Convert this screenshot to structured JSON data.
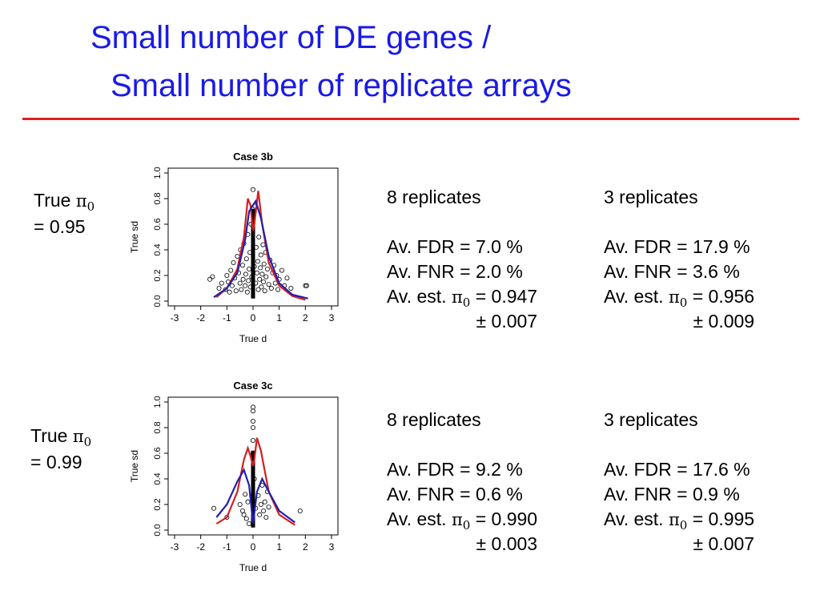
{
  "slide": {
    "title_line1": "Small number of DE genes /",
    "title_line2": "Small number of replicate arrays",
    "title_color": "#1a1ae6",
    "rule_color": "#e02020"
  },
  "panels": [
    {
      "true_prefix": "True ",
      "pi_symbol": "π",
      "pi_sub": "0",
      "true_value": "= 0.95",
      "columns": [
        {
          "heading": "8 replicates",
          "fdr": "Av. FDR = 7.0 %",
          "fnr": "Av. FNR = 2.0 %",
          "est_prefix": "Av. est. ",
          "est_value": " = 0.947",
          "pm": "± 0.007"
        },
        {
          "heading": "3 replicates",
          "fdr": "Av. FDR = 17.9 %",
          "fnr": "Av. FNR = 3.6 %",
          "est_prefix": "Av. est. ",
          "est_value": " = 0.956",
          "pm": "± 0.009"
        }
      ]
    },
    {
      "true_prefix": "True ",
      "pi_symbol": "π",
      "pi_sub": "0",
      "true_value": "= 0.99",
      "columns": [
        {
          "heading": "8 replicates",
          "fdr": "Av. FDR = 9.2 %",
          "fnr": "Av. FNR = 0.6 %",
          "est_prefix": "Av. est. ",
          "est_value": " = 0.990",
          "pm": "± 0.003"
        },
        {
          "heading": "3 replicates",
          "fdr": "Av. FDR = 17.6 %",
          "fnr": "Av. FNR = 0.9 %",
          "est_prefix": "Av. est. ",
          "est_value": " = 0.995",
          "pm": "± 0.007"
        }
      ]
    }
  ],
  "chart_data": [
    {
      "type": "scatter",
      "title": "Case 3b",
      "xlabel": "True d",
      "ylabel": "True sd",
      "xlim": [
        -3,
        3
      ],
      "ylim": [
        0,
        1
      ],
      "x_ticks": [
        "-3",
        "-2",
        "-1",
        "0",
        "1",
        "2",
        "3"
      ],
      "y_ticks": [
        "0.0",
        "0.2",
        "0.4",
        "0.6",
        "0.8",
        "1.0"
      ],
      "grid": false,
      "curve_colors": {
        "red": "#d42020",
        "blue": "#2020b0"
      },
      "points": [
        [
          -1.65,
          0.17
        ],
        [
          -1.55,
          0.19
        ],
        [
          -1.3,
          0.1
        ],
        [
          -1.2,
          0.14
        ],
        [
          -1.05,
          0.09
        ],
        [
          -1.0,
          0.2
        ],
        [
          -0.95,
          0.15
        ],
        [
          -0.9,
          0.07
        ],
        [
          -0.85,
          0.24
        ],
        [
          -0.8,
          0.12
        ],
        [
          -0.75,
          0.3
        ],
        [
          -0.7,
          0.18
        ],
        [
          -0.65,
          0.08
        ],
        [
          -0.6,
          0.35
        ],
        [
          -0.55,
          0.22
        ],
        [
          -0.5,
          0.14
        ],
        [
          -0.48,
          0.4
        ],
        [
          -0.45,
          0.09
        ],
        [
          -0.4,
          0.28
        ],
        [
          -0.38,
          0.17
        ],
        [
          -0.35,
          0.45
        ],
        [
          -0.3,
          0.12
        ],
        [
          -0.28,
          0.21
        ],
        [
          -0.25,
          0.33
        ],
        [
          -0.22,
          0.07
        ],
        [
          -0.2,
          0.52
        ],
        [
          -0.18,
          0.16
        ],
        [
          -0.15,
          0.25
        ],
        [
          -0.12,
          0.38
        ],
        [
          -0.1,
          0.11
        ],
        [
          -0.08,
          0.6
        ],
        [
          -0.05,
          0.19
        ],
        [
          0.0,
          0.87
        ],
        [
          0.05,
          0.27
        ],
        [
          0.08,
          0.74
        ],
        [
          0.1,
          0.14
        ],
        [
          0.12,
          0.42
        ],
        [
          0.15,
          0.22
        ],
        [
          0.18,
          0.31
        ],
        [
          0.2,
          0.09
        ],
        [
          0.22,
          0.5
        ],
        [
          0.25,
          0.17
        ],
        [
          0.28,
          0.26
        ],
        [
          0.3,
          0.36
        ],
        [
          0.32,
          0.11
        ],
        [
          0.35,
          0.21
        ],
        [
          0.38,
          0.44
        ],
        [
          0.4,
          0.15
        ],
        [
          0.42,
          0.29
        ],
        [
          0.45,
          0.08
        ],
        [
          0.48,
          0.38
        ],
        [
          0.5,
          0.19
        ],
        [
          0.55,
          0.25
        ],
        [
          0.6,
          0.13
        ],
        [
          0.65,
          0.32
        ],
        [
          0.7,
          0.1
        ],
        [
          0.75,
          0.22
        ],
        [
          0.8,
          0.28
        ],
        [
          0.85,
          0.14
        ],
        [
          0.9,
          0.2
        ],
        [
          0.95,
          0.09
        ],
        [
          1.0,
          0.17
        ],
        [
          1.1,
          0.24
        ],
        [
          1.2,
          0.12
        ],
        [
          1.3,
          0.18
        ],
        [
          1.45,
          0.1
        ],
        [
          2.0,
          0.12
        ],
        [
          2.05,
          0.12
        ]
      ],
      "spike_x": 0,
      "spike_range": [
        0.02,
        0.72
      ],
      "red_curve": [
        [
          -1.4,
          0.03
        ],
        [
          -1.0,
          0.1
        ],
        [
          -0.6,
          0.25
        ],
        [
          -0.35,
          0.5
        ],
        [
          -0.2,
          0.8
        ],
        [
          -0.1,
          0.75
        ],
        [
          0.0,
          0.55
        ],
        [
          0.05,
          0.6
        ],
        [
          0.2,
          0.86
        ],
        [
          0.35,
          0.6
        ],
        [
          0.6,
          0.3
        ],
        [
          1.0,
          0.12
        ],
        [
          1.5,
          0.04
        ],
        [
          2.0,
          0.01
        ]
      ],
      "blue_curve": [
        [
          -1.5,
          0.03
        ],
        [
          -1.0,
          0.1
        ],
        [
          -0.6,
          0.22
        ],
        [
          -0.3,
          0.48
        ],
        [
          -0.15,
          0.7
        ],
        [
          0.0,
          0.75
        ],
        [
          0.1,
          0.78
        ],
        [
          0.3,
          0.65
        ],
        [
          0.6,
          0.35
        ],
        [
          1.0,
          0.14
        ],
        [
          1.5,
          0.05
        ],
        [
          2.1,
          0.02
        ]
      ]
    },
    {
      "type": "scatter",
      "title": "Case 3c",
      "xlabel": "True d",
      "ylabel": "True sd",
      "xlim": [
        -3,
        3
      ],
      "ylim": [
        0,
        1
      ],
      "x_ticks": [
        "-3",
        "-2",
        "-1",
        "0",
        "1",
        "2",
        "3"
      ],
      "y_ticks": [
        "0.0",
        "0.2",
        "0.4",
        "0.6",
        "0.8",
        "1.0"
      ],
      "grid": false,
      "curve_colors": {
        "red": "#d42020",
        "blue": "#2020b0"
      },
      "points": [
        [
          -1.5,
          0.17
        ],
        [
          -1.0,
          0.1
        ],
        [
          -0.5,
          0.2
        ],
        [
          -0.4,
          0.15
        ],
        [
          -0.35,
          0.12
        ],
        [
          -0.3,
          0.28
        ],
        [
          -0.25,
          0.09
        ],
        [
          -0.2,
          0.22
        ],
        [
          -0.15,
          0.05
        ],
        [
          0.0,
          0.96
        ],
        [
          0.0,
          0.93
        ],
        [
          0.0,
          0.85
        ],
        [
          0.0,
          0.8
        ],
        [
          0.0,
          0.7
        ],
        [
          0.0,
          0.6
        ],
        [
          0.05,
          0.4
        ],
        [
          0.1,
          0.17
        ],
        [
          0.2,
          0.27
        ],
        [
          0.25,
          0.12
        ],
        [
          0.3,
          0.2
        ],
        [
          0.35,
          0.35
        ],
        [
          0.4,
          0.15
        ],
        [
          0.45,
          0.22
        ],
        [
          0.5,
          0.1
        ],
        [
          0.55,
          0.3
        ],
        [
          0.6,
          0.18
        ],
        [
          1.8,
          0.15
        ]
      ],
      "spike_x": 0,
      "spike_range": [
        0.02,
        0.62
      ],
      "red_curve": [
        [
          -1.4,
          0.05
        ],
        [
          -1.0,
          0.1
        ],
        [
          -0.6,
          0.3
        ],
        [
          -0.35,
          0.55
        ],
        [
          -0.2,
          0.64
        ],
        [
          -0.1,
          0.58
        ],
        [
          0.0,
          0.5
        ],
        [
          0.05,
          0.55
        ],
        [
          0.15,
          0.72
        ],
        [
          0.3,
          0.62
        ],
        [
          0.6,
          0.3
        ],
        [
          1.0,
          0.12
        ],
        [
          1.6,
          0.04
        ]
      ],
      "blue_curve": [
        [
          -1.4,
          0.1
        ],
        [
          -1.0,
          0.2
        ],
        [
          -0.6,
          0.38
        ],
        [
          -0.35,
          0.47
        ],
        [
          -0.15,
          0.35
        ],
        [
          0.0,
          0.05
        ],
        [
          0.15,
          0.3
        ],
        [
          0.35,
          0.4
        ],
        [
          0.6,
          0.3
        ],
        [
          1.0,
          0.15
        ],
        [
          1.6,
          0.06
        ]
      ]
    }
  ]
}
